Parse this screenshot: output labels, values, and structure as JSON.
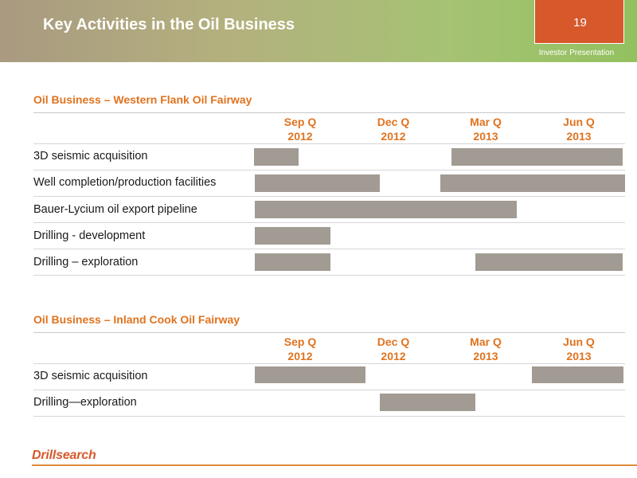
{
  "header": {
    "title": "Key Activities in the Oil Business",
    "page_number": "19",
    "label": "Investor Presentation"
  },
  "sections": [
    {
      "title": "Oil Business – Western Flank Oil Fairway",
      "quarters": [
        {
          "q": "Sep Q",
          "y": "2012"
        },
        {
          "q": "Dec Q",
          "y": "2012"
        },
        {
          "q": "Mar Q",
          "y": "2013"
        },
        {
          "q": "Jun Q",
          "y": "2013"
        }
      ],
      "rows": [
        "3D seismic acquisition",
        "Well completion/production facilities",
        "Bauer-Lycium oil export pipeline",
        "Drilling - development",
        "Drilling – exploration"
      ]
    },
    {
      "title": "Oil Business –  Inland Cook Oil Fairway",
      "quarters": [
        {
          "q": "Sep Q",
          "y": "2012"
        },
        {
          "q": "Dec Q",
          "y": "2012"
        },
        {
          "q": "Mar Q",
          "y": "2013"
        },
        {
          "q": "Jun Q",
          "y": "2013"
        }
      ],
      "rows": [
        "3D seismic acquisition",
        "Drilling—exploration"
      ]
    }
  ],
  "logo": "Drillsearch",
  "colors": {
    "accent": "#e0731f",
    "bar": "#a29b93",
    "page_tab": "#d6582b"
  }
}
